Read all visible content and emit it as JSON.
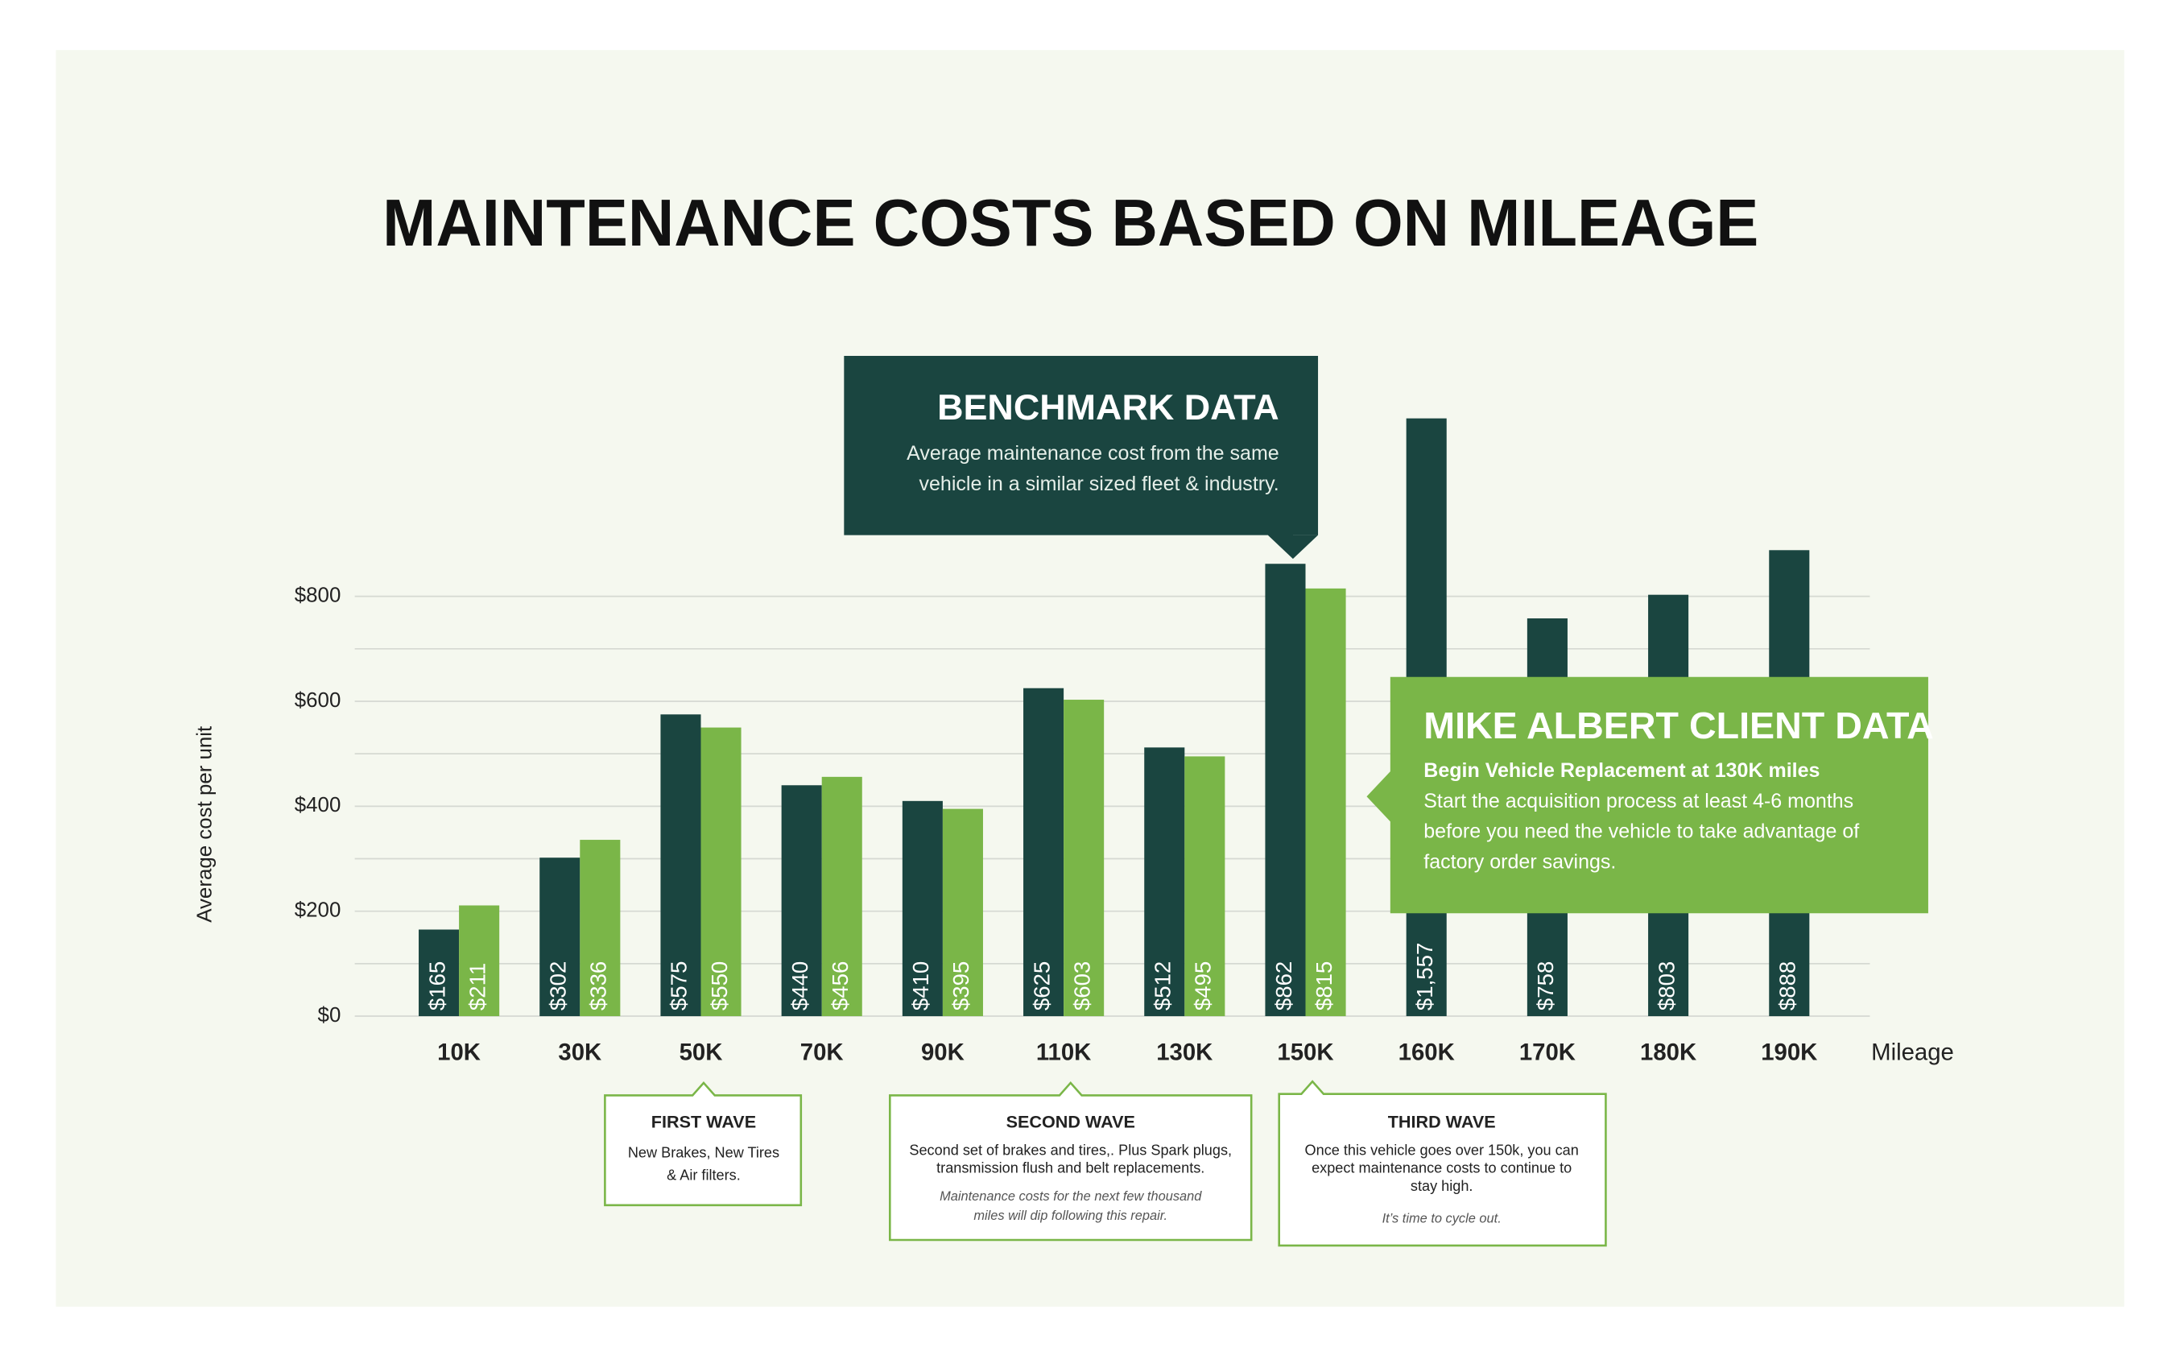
{
  "chart_data": {
    "type": "bar",
    "title": "MAINTENANCE COSTS BASED ON MILEAGE",
    "y_label": "Average cost per unit",
    "x_label": "Mileage",
    "categories": [
      "10K",
      "30K",
      "50K",
      "70K",
      "90K",
      "110K",
      "130K",
      "150K",
      "160K",
      "170K",
      "180K",
      "190K"
    ],
    "series": [
      {
        "name": "BENCHMARK DATA",
        "color": "#1a4540",
        "values": [
          165,
          302,
          575,
          440,
          410,
          625,
          512,
          862,
          1557,
          758,
          803,
          888
        ],
        "value_labels": [
          "$165",
          "$302",
          "$575",
          "$440",
          "$410",
          "$625",
          "$512",
          "$862",
          "$1,557",
          "$758",
          "$803",
          "$888"
        ]
      },
      {
        "name": "MIKE ALBERT CLIENT DATA",
        "color": "#7ab648",
        "values": [
          211,
          336,
          550,
          456,
          395,
          603,
          495,
          815,
          null,
          null,
          null,
          null
        ],
        "value_labels": [
          "$211",
          "$336",
          "$550",
          "$456",
          "$395",
          "$603",
          "$495",
          "$815",
          null,
          null,
          null,
          null
        ]
      }
    ],
    "ylim": [
      0,
      800
    ],
    "yticks": [
      {
        "value": 0,
        "label": "$0"
      },
      {
        "value": 200,
        "label": "$200"
      },
      {
        "value": 400,
        "label": "$400"
      },
      {
        "value": 600,
        "label": "$600"
      },
      {
        "value": 800,
        "label": "$800"
      }
    ],
    "minor_yticks": [
      100,
      300,
      500,
      700
    ],
    "grid": true,
    "series_notes": [
      {
        "lines": [
          "Average maintenance cost from the same",
          "vehicle in a similar sized fleet & industry."
        ]
      },
      {
        "subtitle": "Begin Vehicle Replacement at 130K miles",
        "lines": [
          "Start the acquisition process at least 4-6 months",
          "before you need the vehicle to take advantage of",
          "factory order savings."
        ]
      }
    ],
    "annotations": [
      {
        "title": "FIRST WAVE",
        "lines": [
          "New Brakes, New Tires",
          "& Air filters."
        ],
        "note": []
      },
      {
        "title": "SECOND WAVE",
        "lines": [
          "Second set of brakes and tires,. Plus Spark plugs,",
          "transmission flush and belt replacements."
        ],
        "note": [
          "Maintenance costs for the next few thousand",
          "miles will dip following this repair."
        ]
      },
      {
        "title": "THIRD WAVE",
        "lines": [
          "Once this vehicle goes over 150k, you can",
          "expect maintenance costs to continue to",
          "stay high."
        ],
        "note": [
          "It’s time to cycle out."
        ]
      }
    ]
  }
}
